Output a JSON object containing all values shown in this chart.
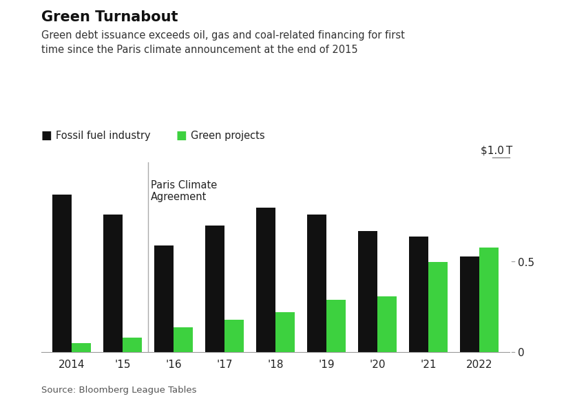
{
  "title": "Green Turnabout",
  "subtitle": "Green debt issuance exceeds oil, gas and coal-related financing for first\ntime since the Paris climate announcement at the end of 2015",
  "source": "Source: Bloomberg League Tables",
  "years": [
    "2014",
    "'15",
    "'16",
    "'17",
    "'18",
    "'19",
    "'20",
    "'21",
    "2022"
  ],
  "fossil_fuel": [
    0.87,
    0.76,
    0.59,
    0.7,
    0.8,
    0.76,
    0.67,
    0.64,
    0.53
  ],
  "green_projects": [
    0.05,
    0.08,
    0.14,
    0.18,
    0.22,
    0.29,
    0.31,
    0.5,
    0.58
  ],
  "fossil_color": "#111111",
  "green_color": "#3dd13f",
  "background_color": "#ffffff",
  "ylim": [
    0,
    1.05
  ],
  "yticks": [
    0,
    0.5
  ],
  "ytick_labels": [
    "0",
    "0.5"
  ],
  "annotation_text": "Paris Climate\nAgreement",
  "vline_x": 1.5,
  "legend_fossil": "Fossil fuel industry",
  "legend_green": "Green projects",
  "bar_width": 0.38
}
